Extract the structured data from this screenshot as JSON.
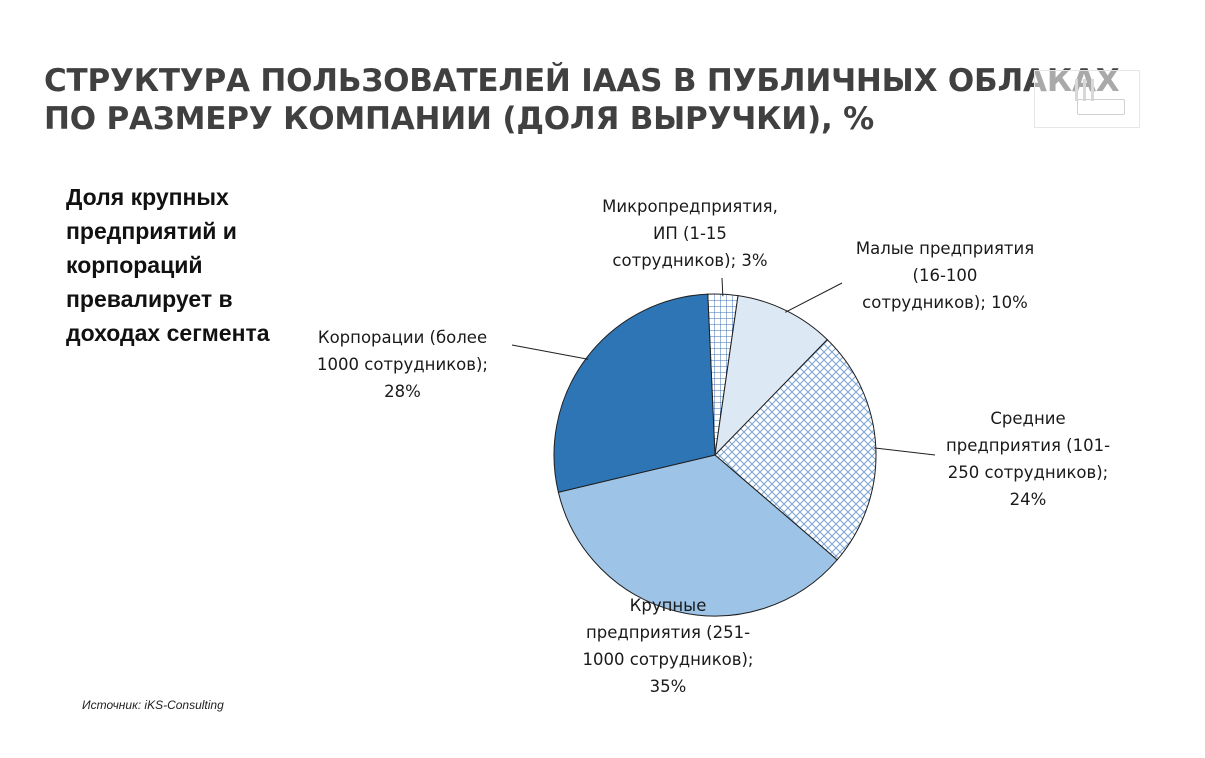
{
  "title_lines": [
    "СТРУКТУРА ПОЛЬЗОВАТЕЛЕЙ IAAS В ПУБЛИЧНЫХ ОБЛАКАХ",
    "ПО РАЗМЕРУ КОМПАНИИ (ДОЛЯ ВЫРУЧКИ), %"
  ],
  "note_lines": [
    "Доля крупных",
    "предприятий и",
    "корпораций",
    "превалирует в",
    "доходах сегмента"
  ],
  "source": "Источник: iKS-Consulting",
  "chart_data": {
    "type": "pie",
    "title": "",
    "slices": [
      {
        "name": "Микропредприятия, ИП (1-15 сотрудников)",
        "value": 3,
        "fill": "#ffffff",
        "pattern": "grid",
        "pattern_color": "#3a6fb5",
        "label_lines": [
          "Микропредприятия,",
          "ИП (1-15",
          "сотрудников); 3%"
        ]
      },
      {
        "name": "Малые предприятия (16-100 сотрудников)",
        "value": 10,
        "fill": "#dde8f5",
        "label_lines": [
          "Малые предприятия",
          "(16-100",
          "сотрудников); 10%"
        ]
      },
      {
        "name": "Средние предприятия (101-250 сотрудников)",
        "value": 24,
        "fill": "#ffffff",
        "pattern": "crosshatch",
        "pattern_color": "#7aa3d4",
        "label_lines": [
          "Средние",
          "предприятия (101-",
          "250 сотрудников);",
          "24%"
        ]
      },
      {
        "name": "Крупные предприятия (251-1000 сотрудников)",
        "value": 35,
        "fill": "#9dc3e6",
        "label_lines": [
          "Крупные",
          "предприятия (251-",
          "1000 сотрудников);",
          "35%"
        ]
      },
      {
        "name": "Корпорации (более 1000 сотрудников)",
        "value": 28,
        "fill": "#2e75b6",
        "label_lines": [
          "Корпорации (более",
          "1000 сотрудников);",
          "28%"
        ]
      }
    ]
  },
  "colors": {
    "title": "#404040",
    "slice_border": "#1f1f1f",
    "leader_line": "#1f1f1f"
  }
}
